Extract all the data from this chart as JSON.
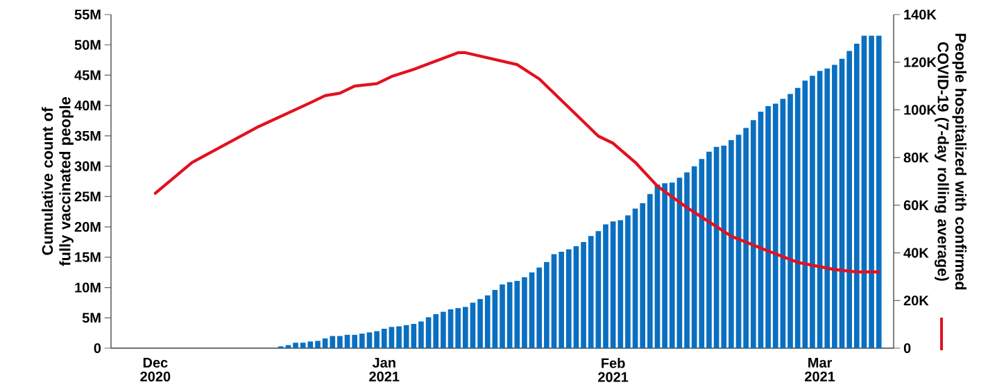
{
  "chart_data": {
    "type": "bar",
    "ylabel": "Cumulative count of fully vaccinated people",
    "y2label": "People hospitalized with confirmed COVID-19 (7-day rolling average)",
    "xlim": [
      "2020-11-25",
      "2021-03-11"
    ],
    "xticks": [
      {
        "value": "2020-12-01",
        "label": "Dec 2020"
      },
      {
        "value": "2021-01-01",
        "label": "Jan 2021"
      },
      {
        "value": "2021-02-01",
        "label": "Feb 2021"
      },
      {
        "value": "2021-03-01",
        "label": "Mar 2021"
      }
    ],
    "ylim": [
      0,
      55
    ],
    "yticks": [
      0,
      {
        "value": 5,
        "label": "5M"
      },
      {
        "value": 10,
        "label": "10M"
      },
      {
        "value": 15,
        "label": "15M"
      },
      {
        "value": 20,
        "label": "20M"
      },
      {
        "value": 25,
        "label": "25M"
      },
      {
        "value": 30,
        "label": "30M"
      },
      {
        "value": 35,
        "label": "35M"
      },
      {
        "value": 40,
        "label": "40M"
      },
      {
        "value": 45,
        "label": "45M"
      },
      {
        "value": 50,
        "label": "50M"
      },
      {
        "value": 55,
        "label": "55M"
      }
    ],
    "y2lim": [
      0,
      140
    ],
    "y2ticks": [
      0,
      {
        "value": 20,
        "label": "20K"
      },
      {
        "value": 40,
        "label": "40K"
      },
      {
        "value": 60,
        "label": "60K"
      },
      {
        "value": 80,
        "label": "80K"
      },
      {
        "value": 100,
        "label": "100K"
      },
      {
        "value": 120,
        "label": "120K"
      },
      {
        "value": 140,
        "label": "140K"
      }
    ],
    "series": [
      {
        "color": "#0a6fc0",
        "x": [
          "2020-12-18",
          "2020-12-19",
          "2020-12-20",
          "2020-12-21",
          "2020-12-22",
          "2020-12-23",
          "2020-12-24",
          "2020-12-25",
          "2020-12-26",
          "2020-12-27",
          "2020-12-28",
          "2020-12-29",
          "2020-12-30",
          "2020-12-31",
          "2021-01-01",
          "2021-01-02",
          "2021-01-03",
          "2021-01-04",
          "2021-01-05",
          "2021-01-06",
          "2021-01-07",
          "2021-01-08",
          "2021-01-09",
          "2021-01-10",
          "2021-01-11",
          "2021-01-12",
          "2021-01-13",
          "2021-01-14",
          "2021-01-15",
          "2021-01-16",
          "2021-01-17",
          "2021-01-18",
          "2021-01-19",
          "2021-01-20",
          "2021-01-21",
          "2021-01-22",
          "2021-01-23",
          "2021-01-24",
          "2021-01-25",
          "2021-01-26",
          "2021-01-27",
          "2021-01-28",
          "2021-01-29",
          "2021-01-30",
          "2021-01-31",
          "2021-02-01",
          "2021-02-02",
          "2021-02-03",
          "2021-02-04",
          "2021-02-05",
          "2021-02-06",
          "2021-02-07",
          "2021-02-08",
          "2021-02-09",
          "2021-02-10",
          "2021-02-11",
          "2021-02-12",
          "2021-02-13",
          "2021-02-14",
          "2021-02-15",
          "2021-02-16",
          "2021-02-17",
          "2021-02-18",
          "2021-02-19",
          "2021-02-20",
          "2021-02-21",
          "2021-02-22",
          "2021-02-23",
          "2021-02-24",
          "2021-02-25",
          "2021-02-26",
          "2021-02-27",
          "2021-02-28",
          "2021-03-01",
          "2021-03-02",
          "2021-03-03",
          "2021-03-04",
          "2021-03-05",
          "2021-03-06",
          "2021-03-07",
          "2021-03-08",
          "2021-03-09"
        ],
        "values": [
          0.3,
          0.5,
          0.9,
          0.9,
          1.1,
          1.2,
          1.6,
          2.0,
          2.0,
          2.2,
          2.2,
          2.4,
          2.6,
          2.8,
          3.2,
          3.5,
          3.6,
          3.8,
          4.0,
          4.4,
          5.1,
          5.6,
          6.0,
          6.4,
          6.6,
          6.8,
          7.5,
          8.1,
          8.7,
          9.6,
          10.5,
          10.9,
          11.1,
          11.7,
          12.5,
          13.3,
          14.2,
          15.5,
          15.9,
          16.3,
          16.8,
          17.5,
          18.5,
          19.3,
          20.4,
          20.9,
          21.1,
          21.9,
          23.0,
          23.9,
          25.4,
          27.0,
          27.2,
          27.3,
          28.1,
          29.0,
          30.0,
          31.2,
          32.4,
          33.2,
          33.4,
          34.3,
          35.2,
          36.3,
          37.6,
          39.0,
          39.9,
          40.3,
          41.1,
          41.9,
          42.9,
          44.1,
          44.9,
          45.7,
          46.1,
          46.7,
          47.7,
          49.0,
          50.2,
          51.5,
          51.5,
          51.5
        ]
      },
      {
        "type": "line",
        "axis": "y2",
        "color": "#e3101f",
        "x": [
          "2020-12-01",
          "2020-12-06",
          "2020-12-15",
          "2020-12-22",
          "2020-12-24",
          "2020-12-26",
          "2020-12-28",
          "2020-12-31",
          "2021-01-02",
          "2021-01-05",
          "2021-01-11",
          "2021-01-12",
          "2021-01-19",
          "2021-01-22",
          "2021-01-27",
          "2021-01-30",
          "2021-02-01",
          "2021-02-04",
          "2021-02-07",
          "2021-02-11",
          "2021-02-14",
          "2021-02-17",
          "2021-02-21",
          "2021-02-26",
          "2021-03-03",
          "2021-03-06",
          "2021-03-09"
        ],
        "values": [
          65,
          78,
          93,
          103,
          106,
          107,
          110,
          111,
          114,
          117,
          124,
          124,
          119,
          113,
          98,
          89,
          86,
          78,
          68,
          59,
          53,
          47,
          42,
          36,
          33,
          32,
          32
        ]
      }
    ]
  }
}
